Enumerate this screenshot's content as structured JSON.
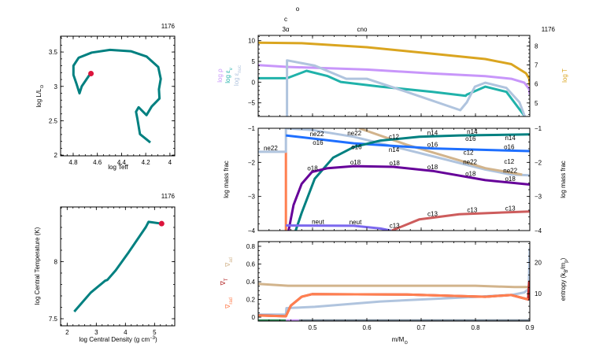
{
  "chart_data": [
    {
      "id": "hr",
      "type": "line",
      "model_number": "1176",
      "xlabel": [
        {
          "t": "log Teff"
        }
      ],
      "ylabel": [
        {
          "t": "log L/L"
        },
        {
          "t": "⊙",
          "sub": true
        }
      ],
      "x": {
        "range": [
          4.904,
          3.96
        ],
        "ticks": [
          4.8,
          4.6,
          4.4,
          4.2,
          4.0
        ],
        "tick_labels": [
          "4.8",
          "4.6",
          "4.4",
          "4.2",
          "4"
        ],
        "minor": 0.05
      },
      "y": {
        "range": [
          1.99,
          3.73
        ],
        "ticks": [
          2,
          2.5,
          3,
          3.5
        ],
        "tick_labels": [
          "2",
          "2.5",
          "3",
          "3.5"
        ],
        "minor": 0.1
      },
      "series": [
        {
          "name": "evolution-track",
          "color": "#008080",
          "axis": "left",
          "x": [
            4.162,
            4.248,
            4.27,
            4.28,
            4.259,
            4.194,
            4.151,
            4.086,
            4.091,
            4.076,
            4.097,
            4.194,
            4.323,
            4.496,
            4.647,
            4.755,
            4.798,
            4.798,
            4.772,
            4.748,
            4.729,
            4.658
          ],
          "y": [
            2.183,
            2.306,
            2.536,
            2.631,
            2.696,
            2.582,
            2.708,
            2.823,
            2.957,
            3.11,
            3.282,
            3.435,
            3.511,
            3.531,
            3.492,
            3.416,
            3.301,
            3.167,
            3.033,
            2.899,
            3.002,
            3.186
          ]
        }
      ],
      "marker": {
        "x": 4.653,
        "y": 3.186,
        "color": "#DC143C"
      }
    },
    {
      "id": "central",
      "type": "line",
      "model_number": "1176",
      "xlabel": [
        {
          "t": "log Central Density (g cm"
        },
        {
          "t": "−3",
          "sup": true
        },
        {
          "t": ")"
        }
      ],
      "ylabel": [
        {
          "t": "log Central Temperature (K)"
        }
      ],
      "x": {
        "range": [
          1.775,
          5.694
        ],
        "ticks": [
          2,
          3,
          4,
          5
        ],
        "tick_labels": [
          "2",
          "3",
          "4",
          "5"
        ],
        "minor": 0.2
      },
      "y": {
        "range": [
          7.438,
          8.479
        ],
        "ticks": [
          7.5,
          8
        ],
        "tick_labels": [
          "7.5",
          "8"
        ],
        "minor": 0.1
      },
      "series": [
        {
          "name": "central-track",
          "color": "#008080",
          "axis": "left",
          "x": [
            2.243,
            2.811,
            3.306,
            3.38,
            3.667,
            4.117,
            4.703,
            4.793,
            5.243
          ],
          "y": [
            7.562,
            7.729,
            7.833,
            7.84,
            7.924,
            8.085,
            8.303,
            8.349,
            8.333
          ]
        }
      ],
      "marker": {
        "x": 5.243,
        "y": 8.333,
        "color": "#DC143C"
      }
    },
    {
      "id": "profile-structure",
      "type": "line",
      "model_number": "1176",
      "burn_labels": [
        "o",
        "c",
        "3α",
        "cno"
      ],
      "ylabels_left": [
        {
          "color": "#C896FA",
          "parts": [
            {
              "t": "log ρ"
            }
          ]
        },
        {
          "color": "#20B2AA",
          "parts": [
            {
              "t": "log ε"
            },
            {
              "t": "ν",
              "sub": true
            }
          ]
        },
        {
          "color": "#B0C4DE",
          "parts": [
            {
              "t": "log ε"
            },
            {
              "t": "nuc",
              "sub": true
            }
          ]
        }
      ],
      "ylabels_right": [
        {
          "color": "#DAA520",
          "parts": [
            {
              "t": "log T"
            }
          ]
        }
      ],
      "x": {
        "range": [
          0.4,
          0.9
        ],
        "ticks": [
          0.5,
          0.6,
          0.7,
          0.8,
          0.9
        ],
        "tick_labels": [],
        "minor": 0.02
      },
      "y": {
        "range": [
          -8.28,
          11.27
        ],
        "ticks": [
          -5,
          0,
          5,
          10
        ],
        "tick_labels": [
          "−5",
          "0",
          "5",
          "10"
        ],
        "minor": 1
      },
      "y2": {
        "range": [
          4.29,
          8.55
        ],
        "ticks": [
          5,
          6,
          7,
          8
        ],
        "tick_labels": [
          "5",
          "6",
          "7",
          "8"
        ],
        "minor": 0.2
      },
      "series": [
        {
          "name": "log-T",
          "color": "#DAA520",
          "axis": "right",
          "x": [
            0.4,
            0.48,
            0.6,
            0.721,
            0.818,
            0.866,
            0.893,
            0.899,
            0.9
          ],
          "y": [
            8.17,
            8.14,
            7.93,
            7.59,
            7.31,
            7.04,
            6.56,
            6.28,
            5.9
          ]
        },
        {
          "name": "log-rho",
          "color": "#C896FA",
          "axis": "left",
          "x": [
            0.4,
            0.453,
            0.6,
            0.721,
            0.818,
            0.866,
            0.89,
            0.899,
            0.9
          ],
          "y": [
            4.1,
            3.67,
            3.04,
            2.09,
            1.46,
            0.82,
            -0.13,
            -1.7,
            -3
          ]
        },
        {
          "name": "log-eps-nu",
          "color": "#20B2AA",
          "axis": "left",
          "x": [
            0.4,
            0.453,
            0.489,
            0.528,
            0.552,
            0.625,
            0.721,
            0.782,
            0.784,
            0.818,
            0.857,
            0.886,
            0.891
          ],
          "y": [
            0.95,
            0.95,
            2.72,
            1.46,
            0.06,
            -1.08,
            -2.34,
            -3.29,
            -3.0,
            -1.08,
            -2.34,
            -7.4,
            -8.3
          ]
        },
        {
          "name": "log-eps-nuc",
          "color": "#B0C4DE",
          "axis": "left",
          "x": [
            0.453,
            0.453,
            0.504,
            0.562,
            0.6,
            0.673,
            0.772,
            0.784,
            0.799,
            0.818,
            0.857,
            0.881,
            0.891
          ],
          "y": [
            -8.3,
            5.25,
            3.99,
            0.82,
            0.82,
            -2.34,
            -6.77,
            -4.87,
            -1.08,
            -0.13,
            -1.39,
            -4.87,
            -8.35
          ]
        }
      ]
    },
    {
      "id": "profile-abundances",
      "type": "line",
      "ylabels_left": [
        {
          "color": "#000000",
          "parts": [
            {
              "t": "log mass frac"
            }
          ]
        }
      ],
      "ylabels_right": [
        {
          "color": "#000000",
          "parts": [
            {
              "t": "log mass frac"
            }
          ]
        }
      ],
      "x": {
        "range": [
          0.4,
          0.9
        ],
        "ticks": [
          0.5,
          0.6,
          0.7,
          0.8,
          0.9
        ],
        "tick_labels": [],
        "minor": 0.02
      },
      "y": {
        "range": [
          -4,
          -1
        ],
        "ticks": [
          -4,
          -3,
          -2,
          -1
        ],
        "tick_labels": [
          "−4",
          "−3",
          "−2",
          "−1"
        ],
        "minor": 0.2
      },
      "y2": {
        "range": [
          -4,
          -1
        ],
        "ticks": [
          -4,
          -3,
          -2,
          -1
        ],
        "tick_labels": [
          "−4",
          "−3",
          "−2",
          "−1"
        ],
        "minor": 0.2
      },
      "series": [
        {
          "name": "he4",
          "color": "#FF7F50",
          "axis": "left",
          "x": [
            0.451,
            0.451
          ],
          "y": [
            -1.7,
            -4.1
          ]
        },
        {
          "name": "ne22",
          "label": "ne22",
          "color": "#B0C4DE",
          "axis": "left",
          "x": [
            0.4,
            0.451,
            0.451,
            0.499,
            0.576,
            0.721,
            0.818,
            0.866,
            0.9
          ],
          "y": [
            -1.69,
            -1.69,
            -1.0,
            -1.05,
            -1.25,
            -1.82,
            -2.21,
            -2.36,
            -2.38
          ],
          "label_x": [
            0.423,
            0.508,
            0.577,
            0.79,
            0.864
          ]
        },
        {
          "name": "c12",
          "label": "c12",
          "color": "#D2B48C",
          "axis": "left",
          "x": [
            0.586,
            0.673,
            0.77,
            0.818,
            0.886
          ],
          "y": [
            -1.0,
            -1.48,
            -1.94,
            -2.17,
            -2.36
          ],
          "label_x": [
            0.65,
            0.787,
            0.862
          ]
        },
        {
          "name": "o16",
          "label": "o16",
          "color": "#1E6FFF",
          "axis": "left",
          "x": [
            0.451,
            0.576,
            0.721,
            0.9
          ],
          "y": [
            -1.21,
            -1.44,
            -1.59,
            -1.67
          ],
          "label_x": [
            0.51,
            0.581,
            0.721,
            0.791,
            0.862
          ]
        },
        {
          "name": "n14",
          "label": "n14",
          "color": "#008080",
          "axis": "left",
          "x": [
            0.469,
            0.48,
            0.504,
            0.538,
            0.576,
            0.625,
            0.697,
            0.77,
            0.9
          ],
          "y": [
            -4.0,
            -3.48,
            -2.48,
            -1.86,
            -1.55,
            -1.36,
            -1.25,
            -1.21,
            -1.18
          ],
          "label_x": [
            0.65,
            0.721,
            0.794,
            0.864
          ]
        },
        {
          "name": "o18",
          "label": "o18",
          "color": "#660099",
          "axis": "left",
          "x": [
            0.456,
            0.465,
            0.48,
            0.499,
            0.528,
            0.576,
            0.649,
            0.721,
            0.818,
            0.9
          ],
          "y": [
            -4.0,
            -3.25,
            -2.63,
            -2.28,
            -2.17,
            -2.11,
            -2.13,
            -2.25,
            -2.52,
            -2.65
          ],
          "label_x": [
            0.5,
            0.579,
            0.651,
            0.721,
            0.791,
            0.864
          ]
        },
        {
          "name": "neut",
          "label": "neut",
          "color": "#7B68EE",
          "axis": "left",
          "x": [
            0.451,
            0.576,
            0.625,
            0.644
          ],
          "y": [
            -3.85,
            -3.86,
            -3.94,
            -4.0
          ],
          "label_x": [
            0.51,
            0.579
          ]
        },
        {
          "name": "c13",
          "label": "c13",
          "color": "#CD5C5C",
          "axis": "left",
          "x": [
            0.646,
            0.697,
            0.77,
            0.9
          ],
          "y": [
            -4.0,
            -3.67,
            -3.52,
            -3.44
          ],
          "label_x": [
            0.651,
            0.721,
            0.794,
            0.864
          ]
        }
      ]
    },
    {
      "id": "profile-gradients",
      "type": "line",
      "xlabel": [
        {
          "t": "m/M"
        },
        {
          "t": "⊙",
          "sub": true
        }
      ],
      "ylabels_left": [
        {
          "color": "#D2B48C",
          "parts": [
            {
              "t": "∇"
            },
            {
              "t": "ad",
              "sub": true
            }
          ]
        },
        {
          "color": "#B22222",
          "parts": [
            {
              "t": "∇"
            },
            {
              "t": "T",
              "sub": true
            }
          ]
        },
        {
          "color": "#FF7F50",
          "parts": [
            {
              "t": "∇"
            },
            {
              "t": "rad",
              "sub": true
            }
          ]
        }
      ],
      "ylabels_right": [
        {
          "color": "#000000",
          "parts": [
            {
              "t": "entropy (k"
            },
            {
              "t": "B",
              "sub": true
            },
            {
              "t": "/m"
            },
            {
              "t": "p",
              "sub": true
            },
            {
              "t": ")"
            }
          ]
        }
      ],
      "x": {
        "range": [
          0.4,
          0.9
        ],
        "ticks": [
          0.5,
          0.6,
          0.7,
          0.8,
          0.9
        ],
        "tick_labels": [
          "0.5",
          "0.6",
          "0.7",
          "0.8",
          "0.9"
        ],
        "minor": 0.02
      },
      "y": {
        "range": [
          -0.044,
          0.853
        ],
        "ticks": [
          0,
          0.2,
          0.4,
          0.6,
          0.8
        ],
        "tick_labels": [
          "0",
          "0.2",
          "0.4",
          "0.6",
          "0.8"
        ],
        "minor": 0.05
      },
      "y2": {
        "range": [
          1.25,
          26.65
        ],
        "ticks": [
          10,
          20
        ],
        "tick_labels": [
          "10",
          "20"
        ],
        "minor": 2
      },
      "series": [
        {
          "name": "entropy",
          "color": "#B0C4DE",
          "axis": "right",
          "x": [
            0.4,
            0.451,
            0.452,
            0.504,
            0.625,
            0.77,
            0.866,
            0.89,
            0.898,
            0.9
          ],
          "y": [
            3.3,
            3.3,
            5.4,
            5.8,
            7.5,
            8.75,
            9.6,
            10.4,
            11.5,
            24.6
          ]
        },
        {
          "name": "grad-ad",
          "color": "#D2B48C",
          "axis": "left",
          "x": [
            0.4,
            0.455,
            0.8,
            0.872,
            0.9
          ],
          "y": [
            0.376,
            0.355,
            0.355,
            0.34,
            0.34
          ]
        },
        {
          "name": "grad-T",
          "color": "#B22222",
          "axis": "left",
          "x": [
            0.4,
            0.451,
            0.46,
            0.48,
            0.499,
            0.673,
            0.818,
            0.866,
            0.897,
            0.899,
            0.9
          ],
          "y": [
            0.02,
            0.01,
            0.13,
            0.23,
            0.26,
            0.255,
            0.23,
            0.25,
            0.2,
            0.4,
            0.2
          ]
        },
        {
          "name": "grad-rad",
          "color": "#FF7F50",
          "axis": "left",
          "x": [
            0.4,
            0.451,
            0.46,
            0.48,
            0.499,
            0.673,
            0.818,
            0.866,
            0.897
          ],
          "y": [
            0.018,
            0.01,
            0.13,
            0.23,
            0.26,
            0.255,
            0.23,
            0.25,
            0.2
          ]
        },
        {
          "name": "zone-burn",
          "color": "#2E8B57",
          "axis": "left",
          "x": [
            0.4,
            0.451
          ],
          "y": [
            -0.038,
            -0.038
          ],
          "thin": true
        },
        {
          "name": "zone-mix",
          "color": "#C896FA",
          "axis": "left",
          "x": [
            0.451,
            0.475
          ],
          "y": [
            -0.038,
            -0.038
          ],
          "thin": true
        },
        {
          "name": "zone-rad",
          "color": "#708090",
          "axis": "left",
          "x": [
            0.475,
            0.9
          ],
          "y": [
            -0.038,
            -0.038
          ],
          "thin": true
        }
      ]
    }
  ]
}
